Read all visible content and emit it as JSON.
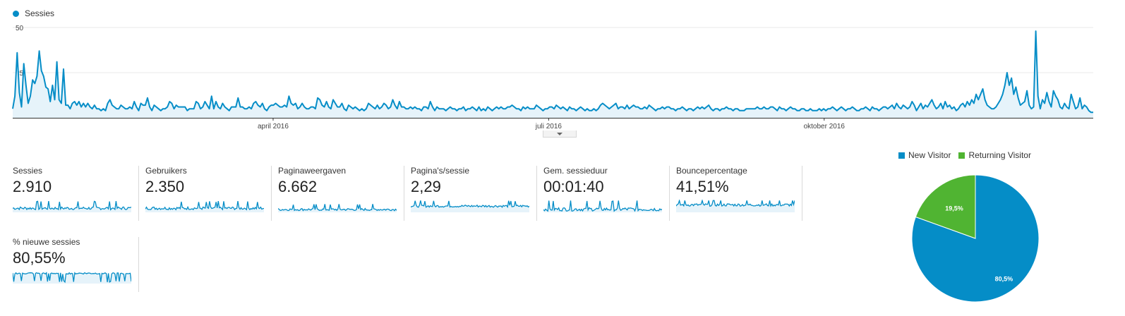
{
  "legend": {
    "series_name": "Sessies",
    "color": "#058dc7"
  },
  "chart_data": {
    "type": "area",
    "title": "",
    "series": [
      {
        "name": "Sessies",
        "color": "#058dc7"
      }
    ],
    "x_ticks": [
      "april 2016",
      "juli 2016",
      "oktober 2016"
    ],
    "y_ticks": [
      "50",
      "25"
    ],
    "ylim": [
      0,
      50
    ],
    "grid": true,
    "values": [
      5,
      12,
      36,
      14,
      6,
      30,
      18,
      8,
      12,
      21,
      19,
      23,
      37,
      26,
      23,
      17,
      16,
      9,
      18,
      10,
      31,
      10,
      8,
      27,
      7,
      7,
      5,
      8,
      9,
      7,
      9,
      6,
      8,
      6,
      8,
      6,
      5,
      7,
      5,
      5,
      4,
      5,
      4,
      8,
      10,
      7,
      6,
      5,
      5,
      7,
      6,
      5,
      5,
      6,
      5,
      9,
      6,
      4,
      8,
      7,
      7,
      11,
      6,
      4,
      7,
      6,
      5,
      4,
      5,
      5,
      6,
      9,
      8,
      5,
      7,
      6,
      6,
      6,
      6,
      4,
      5,
      5,
      5,
      9,
      8,
      5,
      6,
      9,
      7,
      5,
      12,
      5,
      9,
      6,
      5,
      8,
      6,
      5,
      4,
      6,
      6,
      6,
      11,
      6,
      6,
      5,
      5,
      6,
      5,
      8,
      9,
      7,
      6,
      8,
      5,
      4,
      6,
      7,
      7,
      8,
      7,
      6,
      6,
      7,
      6,
      12,
      8,
      7,
      8,
      5,
      6,
      8,
      6,
      5,
      5,
      6,
      6,
      5,
      11,
      10,
      7,
      6,
      9,
      6,
      5,
      10,
      8,
      6,
      6,
      8,
      5,
      4,
      7,
      6,
      5,
      6,
      5,
      4,
      5,
      4,
      5,
      8,
      7,
      6,
      5,
      7,
      5,
      6,
      8,
      7,
      5,
      6,
      10,
      7,
      5,
      9,
      6,
      6,
      5,
      5,
      6,
      5,
      6,
      5,
      5,
      4,
      6,
      6,
      5,
      9,
      6,
      4,
      6,
      5,
      5,
      5,
      4,
      5,
      6,
      5,
      5,
      4,
      5,
      5,
      6,
      4,
      5,
      5,
      6,
      5,
      4,
      6,
      4,
      5,
      4,
      6,
      5,
      4,
      5,
      6,
      5,
      6,
      5,
      5,
      6,
      6,
      7,
      6,
      5,
      5,
      4,
      6,
      5,
      6,
      5,
      5,
      5,
      7,
      6,
      5,
      4,
      5,
      5,
      6,
      6,
      5,
      7,
      6,
      5,
      6,
      5,
      4,
      6,
      5,
      5,
      4,
      5,
      6,
      5,
      4,
      5,
      4,
      4,
      5,
      4,
      5,
      7,
      8,
      7,
      6,
      5,
      6,
      7,
      8,
      5,
      6,
      6,
      5,
      7,
      5,
      6,
      7,
      6,
      6,
      5,
      5,
      6,
      5,
      7,
      6,
      5,
      4,
      5,
      5,
      6,
      5,
      6,
      6,
      5,
      5,
      4,
      5,
      5,
      6,
      5,
      4,
      5,
      5,
      4,
      5,
      6,
      5,
      6,
      5,
      6,
      7,
      5,
      4,
      5,
      5,
      4,
      5,
      5,
      6,
      5,
      5,
      4,
      5,
      5,
      4,
      4,
      4,
      5,
      5,
      5,
      5,
      5,
      6,
      5,
      5,
      6,
      5,
      5,
      6,
      6,
      5,
      4,
      6,
      5,
      5,
      4,
      5,
      6,
      5,
      5,
      4,
      4,
      5,
      5,
      4,
      4,
      5,
      4,
      4,
      4,
      5,
      4,
      5,
      4,
      5,
      5,
      6,
      5,
      4,
      5,
      6,
      5,
      4,
      5,
      5,
      6,
      5,
      4,
      4,
      5,
      5,
      6,
      5,
      4,
      6,
      5,
      5,
      4,
      5,
      6,
      6,
      5,
      6,
      7,
      5,
      8,
      6,
      5,
      7,
      6,
      5,
      6,
      9,
      7,
      4,
      6,
      8,
      5,
      7,
      6,
      8,
      10,
      7,
      5,
      6,
      8,
      5,
      9,
      6,
      7,
      5,
      6,
      4,
      5,
      7,
      8,
      6,
      9,
      7,
      10,
      8,
      13,
      10,
      13,
      16,
      10,
      7,
      6,
      5,
      5,
      6,
      8,
      10,
      13,
      18,
      25,
      18,
      22,
      13,
      17,
      11,
      7,
      8,
      9,
      15,
      7,
      5,
      6,
      48,
      12,
      5,
      10,
      8,
      14,
      9,
      6,
      15,
      12,
      10,
      6,
      5,
      8,
      6,
      5,
      13,
      9,
      5,
      6,
      11,
      5,
      7,
      6,
      4,
      3,
      3
    ]
  },
  "metrics": [
    {
      "label": "Sessies",
      "value": "2.910"
    },
    {
      "label": "Gebruikers",
      "value": "2.350"
    },
    {
      "label": "Paginaweergaven",
      "value": "6.662"
    },
    {
      "label": "Pagina's/sessie",
      "value": "2,29"
    },
    {
      "label": "Gem. sessieduur",
      "value": "00:01:40"
    },
    {
      "label": "Bouncepercentage",
      "value": "41,51%"
    },
    {
      "label": "% nieuwe sessies",
      "value": "80,55%"
    }
  ],
  "pie": {
    "legend": [
      {
        "label": "New Visitor",
        "color": "#058dc7"
      },
      {
        "label": "Returning Visitor",
        "color": "#50b432"
      }
    ],
    "slices": [
      {
        "label": "80,5%",
        "value": 80.5,
        "color": "#058dc7"
      },
      {
        "label": "19,5%",
        "value": 19.5,
        "color": "#50b432"
      }
    ]
  }
}
